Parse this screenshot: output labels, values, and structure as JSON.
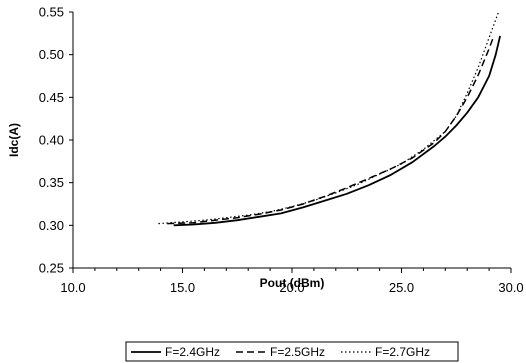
{
  "chart_data": {
    "type": "line",
    "title": "",
    "xlabel": "Pout (dBm)",
    "ylabel": "Idc(A)",
    "xlim": [
      10.0,
      30.0
    ],
    "ylim": [
      0.25,
      0.55
    ],
    "x_ticks": [
      "10.0",
      "15.0",
      "20.0",
      "25.0",
      "30.0"
    ],
    "y_ticks": [
      "0.25",
      "0.30",
      "0.35",
      "0.40",
      "0.45",
      "0.50",
      "0.55"
    ],
    "x_minor_step": 1.0,
    "grid": false,
    "legend_position": "bottom",
    "series": [
      {
        "name": "F=2.4GHz",
        "style": "solid",
        "x": [
          14.6,
          15.5,
          16.5,
          17.5,
          18.5,
          19.5,
          20.5,
          21.5,
          22.5,
          23.5,
          24.5,
          25.5,
          26.5,
          27.0,
          27.5,
          28.0,
          28.5,
          29.0,
          29.3,
          29.5
        ],
        "y": [
          0.3,
          0.301,
          0.303,
          0.306,
          0.31,
          0.314,
          0.321,
          0.329,
          0.337,
          0.347,
          0.359,
          0.374,
          0.393,
          0.404,
          0.417,
          0.432,
          0.45,
          0.475,
          0.5,
          0.522
        ]
      },
      {
        "name": "F=2.5GHz",
        "style": "dashed",
        "x": [
          14.3,
          15.5,
          16.5,
          17.5,
          18.5,
          19.5,
          20.5,
          21.5,
          22.5,
          23.5,
          24.5,
          25.5,
          26.5,
          27.0,
          27.5,
          28.0,
          28.5,
          29.0,
          29.2
        ],
        "y": [
          0.302,
          0.303,
          0.306,
          0.309,
          0.313,
          0.318,
          0.325,
          0.334,
          0.344,
          0.355,
          0.366,
          0.379,
          0.397,
          0.41,
          0.428,
          0.45,
          0.476,
          0.507,
          0.521
        ]
      },
      {
        "name": "F=2.7GHz",
        "style": "dotted",
        "x": [
          13.9,
          15.0,
          16.0,
          17.0,
          18.0,
          19.0,
          20.0,
          21.0,
          22.0,
          23.0,
          24.0,
          25.0,
          26.0,
          27.0,
          27.5,
          28.0,
          28.5,
          29.0,
          29.5
        ],
        "y": [
          0.302,
          0.304,
          0.306,
          0.309,
          0.312,
          0.316,
          0.322,
          0.329,
          0.338,
          0.348,
          0.36,
          0.372,
          0.389,
          0.41,
          0.428,
          0.455,
          0.485,
          0.52,
          0.555
        ]
      }
    ]
  }
}
